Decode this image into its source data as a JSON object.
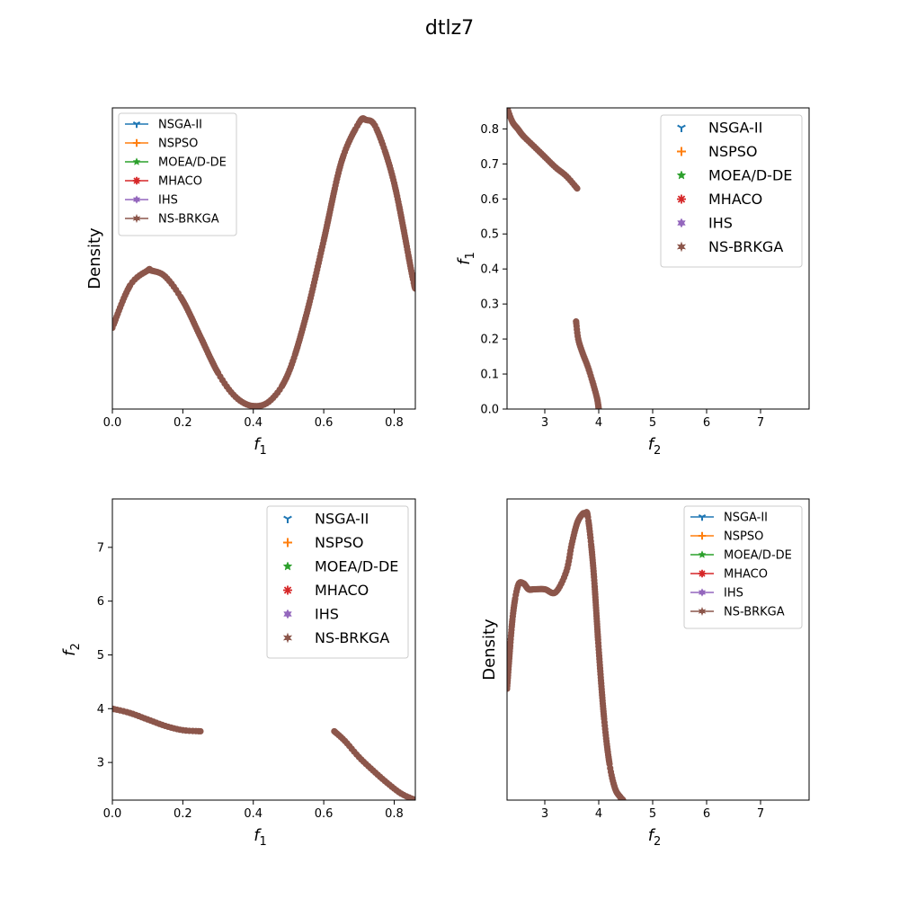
{
  "figure_title": "dtlz7",
  "colors": {
    "NSGA-II": "#1f77b4",
    "NSPSO": "#ff7f0e",
    "MOEA/D-DE": "#2ca02c",
    "MHACO": "#d62728",
    "IHS": "#9467bd",
    "NS-BRKGA": "#8c564b"
  },
  "chart_data": [
    {
      "id": "density-f1",
      "type": "line",
      "xlabel": "f",
      "xlabel_sub": "1",
      "ylabel": "Density",
      "xlim": [
        0,
        0.86
      ],
      "ylim": [
        0,
        1
      ],
      "xticks": [
        0.0,
        0.2,
        0.4,
        0.6,
        0.8
      ],
      "xtick_labels": [
        "0.0",
        "0.2",
        "0.4",
        "0.6",
        "0.8"
      ],
      "yticks": [],
      "legend": "upper-left",
      "legend_size": "small",
      "legend_entries": [
        "NSGA-II",
        "NSPSO",
        "MOEA/D-DE",
        "MHACO",
        "IHS",
        "NS-BRKGA"
      ],
      "series": [
        {
          "name": "NS-BRKGA",
          "marker": "star",
          "x": [
            0.0,
            0.05,
            0.1,
            0.11,
            0.15,
            0.2,
            0.25,
            0.3,
            0.35,
            0.4,
            0.45,
            0.5,
            0.55,
            0.6,
            0.65,
            0.7,
            0.72,
            0.75,
            0.8,
            0.85,
            0.86
          ],
          "y": [
            0.27,
            0.41,
            0.46,
            0.46,
            0.44,
            0.36,
            0.24,
            0.12,
            0.04,
            0.01,
            0.03,
            0.12,
            0.31,
            0.56,
            0.82,
            0.95,
            0.96,
            0.93,
            0.75,
            0.45,
            0.4
          ]
        }
      ]
    },
    {
      "id": "scatter-f2-f1",
      "type": "scatter",
      "xlabel": "f",
      "xlabel_sub": "2",
      "ylabel": "f",
      "ylabel_sub": "1",
      "xlim": [
        2.3,
        7.9
      ],
      "ylim": [
        0,
        0.86
      ],
      "xticks": [
        3,
        4,
        5,
        6,
        7
      ],
      "xtick_labels": [
        "3",
        "4",
        "5",
        "6",
        "7"
      ],
      "yticks": [
        0.0,
        0.1,
        0.2,
        0.3,
        0.4,
        0.5,
        0.6,
        0.7,
        0.8
      ],
      "ytick_labels": [
        "0.0",
        "0.1",
        "0.2",
        "0.3",
        "0.4",
        "0.5",
        "0.6",
        "0.7",
        "0.8"
      ],
      "legend": "upper-right",
      "legend_size": "large",
      "legend_entries": [
        "NSGA-II",
        "NSPSO",
        "MOEA/D-DE",
        "MHACO",
        "IHS",
        "NS-BRKGA"
      ],
      "series": [
        {
          "name": "NS-BRKGA",
          "marker": "star",
          "x": [
            2.3,
            2.4,
            2.5,
            2.6,
            2.8,
            3.0,
            3.2,
            3.4,
            3.6,
            3.58,
            3.62,
            3.7,
            3.8,
            3.9,
            3.97,
            4.0
          ],
          "y": [
            0.86,
            0.82,
            0.8,
            0.78,
            0.75,
            0.72,
            0.69,
            0.665,
            0.63,
            0.25,
            0.2,
            0.16,
            0.12,
            0.07,
            0.03,
            0.0
          ],
          "segments": [
            [
              0,
              8
            ],
            [
              9,
              15
            ]
          ]
        }
      ]
    },
    {
      "id": "scatter-f1-f2",
      "type": "scatter",
      "xlabel": "f",
      "xlabel_sub": "1",
      "ylabel": "f",
      "ylabel_sub": "2",
      "xlim": [
        0,
        0.86
      ],
      "ylim": [
        2.3,
        7.9
      ],
      "xticks": [
        0.0,
        0.2,
        0.4,
        0.6,
        0.8
      ],
      "xtick_labels": [
        "0.0",
        "0.2",
        "0.4",
        "0.6",
        "0.8"
      ],
      "yticks": [
        3,
        4,
        5,
        6,
        7
      ],
      "ytick_labels": [
        "3",
        "4",
        "5",
        "6",
        "7"
      ],
      "legend": "upper-right",
      "legend_size": "large",
      "legend_entries": [
        "NSGA-II",
        "NSPSO",
        "MOEA/D-DE",
        "MHACO",
        "IHS",
        "NS-BRKGA"
      ],
      "series": [
        {
          "name": "NS-BRKGA",
          "marker": "star",
          "x": [
            0.0,
            0.05,
            0.1,
            0.15,
            0.2,
            0.25,
            0.63,
            0.66,
            0.7,
            0.74,
            0.78,
            0.82,
            0.86
          ],
          "y": [
            4.0,
            3.92,
            3.8,
            3.68,
            3.6,
            3.58,
            3.58,
            3.4,
            3.1,
            2.85,
            2.62,
            2.42,
            2.3
          ],
          "segments": [
            [
              0,
              5
            ],
            [
              6,
              12
            ]
          ]
        }
      ]
    },
    {
      "id": "density-f2",
      "type": "line",
      "xlabel": "f",
      "xlabel_sub": "2",
      "ylabel": "Density",
      "xlim": [
        2.3,
        7.9
      ],
      "ylim": [
        0,
        1
      ],
      "xticks": [
        3,
        4,
        5,
        6,
        7
      ],
      "xtick_labels": [
        "3",
        "4",
        "5",
        "6",
        "7"
      ],
      "yticks": [],
      "legend": "upper-right",
      "legend_size": "small",
      "legend_entries": [
        "NSGA-II",
        "NSPSO",
        "MOEA/D-DE",
        "MHACO",
        "IHS",
        "NS-BRKGA"
      ],
      "series": [
        {
          "name": "NS-BRKGA",
          "marker": "star",
          "x": [
            2.3,
            2.4,
            2.5,
            2.6,
            2.7,
            2.8,
            3.0,
            3.2,
            3.4,
            3.5,
            3.6,
            3.7,
            3.75,
            3.8,
            3.9,
            4.0,
            4.1,
            4.2,
            4.3,
            4.4,
            4.45
          ],
          "y": [
            0.37,
            0.6,
            0.71,
            0.72,
            0.7,
            0.7,
            0.7,
            0.69,
            0.76,
            0.85,
            0.92,
            0.95,
            0.95,
            0.94,
            0.77,
            0.5,
            0.27,
            0.12,
            0.04,
            0.01,
            0.0
          ]
        }
      ]
    }
  ]
}
